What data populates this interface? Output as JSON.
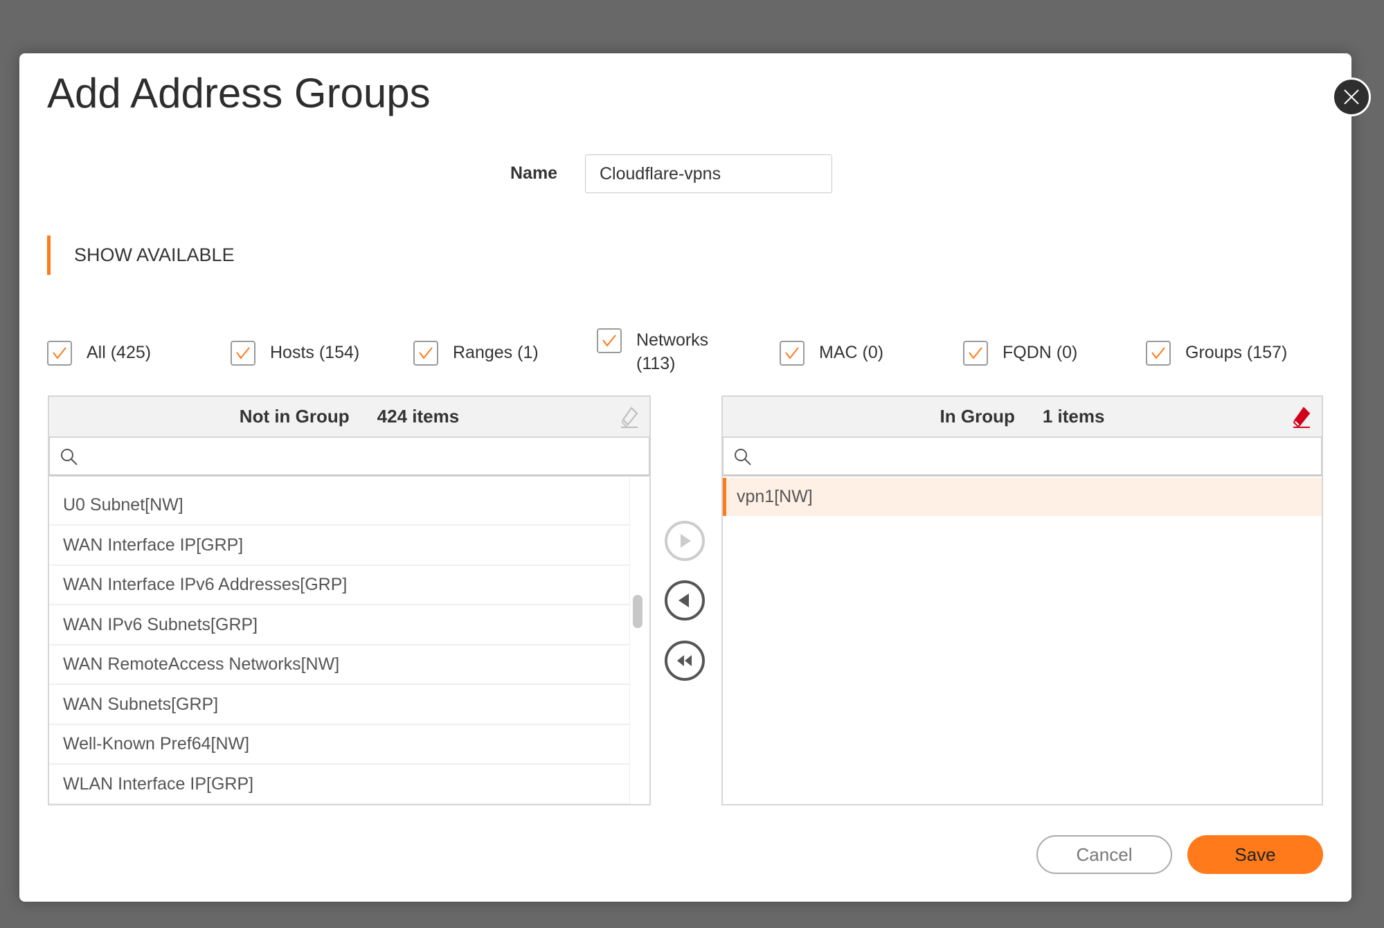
{
  "dialog": {
    "title": "Add Address Groups"
  },
  "name": {
    "label": "Name",
    "value": "Cloudflare-vpns"
  },
  "show_available": {
    "label": "SHOW AVAILABLE"
  },
  "filters": [
    {
      "label": "All (425)",
      "checked": true
    },
    {
      "label": "Hosts (154)",
      "checked": true
    },
    {
      "label": "Ranges (1)",
      "checked": true
    },
    {
      "label": "Networks (113)",
      "line1": "Networks",
      "line2": "(113)",
      "checked": true
    },
    {
      "label": "MAC (0)",
      "checked": true
    },
    {
      "label": "FQDN (0)",
      "checked": true
    },
    {
      "label": "Groups (157)",
      "checked": true
    }
  ],
  "not_in_group": {
    "title": "Not in Group",
    "count": "424 items",
    "search_placeholder": "",
    "items": [
      "U0 Subnet[NW]",
      "WAN Interface IP[GRP]",
      "WAN Interface IPv6 Addresses[GRP]",
      "WAN IPv6 Subnets[GRP]",
      "WAN RemoteAccess Networks[NW]",
      "WAN Subnets[GRP]",
      "Well-Known Pref64[NW]",
      "WLAN Interface IP[GRP]"
    ]
  },
  "in_group": {
    "title": "In Group",
    "count": "1 items",
    "search_placeholder": "",
    "items": [
      "vpn1[NW]"
    ]
  },
  "buttons": {
    "cancel": "Cancel",
    "save": "Save"
  },
  "colors": {
    "accent": "#ff7a1a",
    "selected_row": "#fff0e6",
    "eraser_active": "#d0021b"
  }
}
